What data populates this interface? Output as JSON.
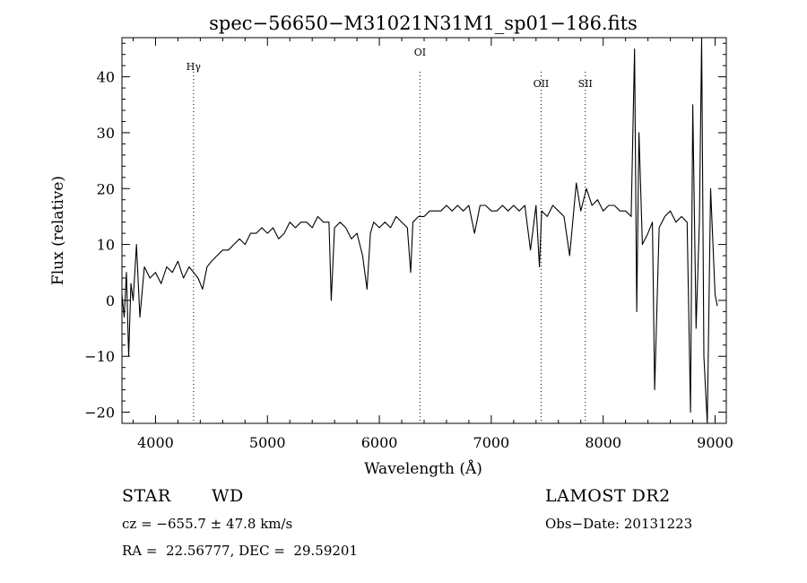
{
  "chart_data": {
    "type": "line",
    "title": "spec−56650−M31021N31M1_sp01−186.fits",
    "xlabel": "Wavelength (Å)",
    "ylabel": "Flux (relative)",
    "xlim": [
      3700,
      9100
    ],
    "ylim": [
      -22,
      47
    ],
    "xticks": [
      4000,
      5000,
      6000,
      7000,
      8000,
      9000
    ],
    "yticks": [
      -20,
      -10,
      0,
      10,
      20,
      30,
      40
    ],
    "xtick_labels": [
      "4000",
      "5000",
      "6000",
      "7000",
      "8000",
      "9000"
    ],
    "ytick_labels": [
      "−20",
      "−10",
      "0",
      "10",
      "20",
      "30",
      "40"
    ],
    "line_color": "#000000",
    "lines": [
      {
        "label": "Hγ",
        "x": 4340
      },
      {
        "label": "OI",
        "x": 6363
      },
      {
        "label": "OII",
        "x": 7445
      },
      {
        "label": "SII",
        "x": 7840
      }
    ],
    "series": [
      {
        "x": [
          3700,
          3720,
          3740,
          3760,
          3780,
          3800,
          3830,
          3860,
          3900,
          3950,
          4000,
          4050,
          4100,
          4150,
          4200,
          4250,
          4300,
          4340,
          4380,
          4420,
          4460,
          4500,
          4550,
          4600,
          4650,
          4700,
          4750,
          4800,
          4850,
          4900,
          4950,
          5000,
          5050,
          5100,
          5150,
          5200,
          5250,
          5300,
          5350,
          5400,
          5450,
          5500,
          5550,
          5570,
          5600,
          5650,
          5700,
          5750,
          5800,
          5850,
          5890,
          5920,
          5950,
          6000,
          6050,
          6100,
          6150,
          6200,
          6250,
          6280,
          6300,
          6350,
          6400,
          6450,
          6500,
          6550,
          6600,
          6650,
          6700,
          6750,
          6800,
          6850,
          6900,
          6950,
          7000,
          7050,
          7100,
          7150,
          7200,
          7250,
          7300,
          7350,
          7400,
          7430,
          7450,
          7500,
          7550,
          7600,
          7650,
          7700,
          7760,
          7800,
          7850,
          7900,
          7950,
          8000,
          8050,
          8100,
          8150,
          8200,
          8250,
          8280,
          8300,
          8320,
          8350,
          8400,
          8440,
          8460,
          8500,
          8550,
          8600,
          8650,
          8700,
          8750,
          8780,
          8800,
          8830,
          8860,
          8880,
          8900,
          8930,
          8960,
          9000,
          9020
        ],
        "y": [
          1,
          -3,
          5,
          -10,
          3,
          0,
          10,
          -3,
          6,
          4,
          5,
          3,
          6,
          5,
          7,
          4,
          6,
          5,
          4,
          2,
          6,
          7,
          8,
          9,
          9,
          10,
          11,
          10,
          12,
          12,
          13,
          12,
          13,
          11,
          12,
          14,
          13,
          14,
          14,
          13,
          15,
          14,
          14,
          0,
          13,
          14,
          13,
          11,
          12,
          8,
          2,
          12,
          14,
          13,
          14,
          13,
          15,
          14,
          13,
          5,
          14,
          15,
          15,
          16,
          16,
          16,
          17,
          16,
          17,
          16,
          17,
          12,
          17,
          17,
          16,
          16,
          17,
          16,
          17,
          16,
          17,
          9,
          17,
          6,
          16,
          15,
          17,
          16,
          15,
          8,
          21,
          16,
          20,
          17,
          18,
          16,
          17,
          17,
          16,
          16,
          15,
          45,
          -2,
          30,
          10,
          12,
          14,
          -16,
          13,
          15,
          16,
          14,
          15,
          14,
          -20,
          35,
          -5,
          14,
          47,
          -10,
          -22,
          20,
          1,
          -1
        ]
      }
    ]
  },
  "info": {
    "object_type": "STAR",
    "subclass": "WD",
    "survey": "LAMOST DR2",
    "cz_text": "cz = −655.7 ± 47.8 km/s",
    "obs_date_text": "Obs−Date: 20131223",
    "coords_text": "RA =  22.56777, DEC =  29.59201"
  }
}
